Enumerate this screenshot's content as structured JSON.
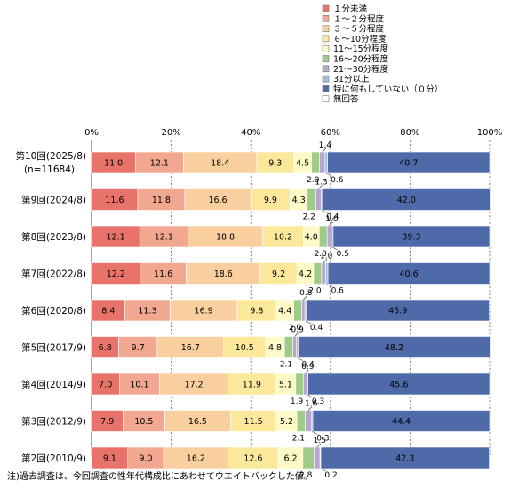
{
  "chart_data": {
    "type": "bar",
    "orientation": "horizontal",
    "stacked": true,
    "xlim": [
      0,
      100
    ],
    "x_ticks": [
      "0%",
      "20%",
      "40%",
      "60%",
      "80%",
      "100%"
    ],
    "grid": true,
    "legend_position": "top",
    "categories": [
      "第10回(2025/8)",
      "第9回(2024/8)",
      "第8回(2023/8)",
      "第7回(2022/8)",
      "第6回(2020/8)",
      "第5回(2017/9)",
      "第4回(2014/9)",
      "第3回(2012/9)",
      "第2回(2010/9)"
    ],
    "category_sublabels": [
      "(n=11684)",
      "",
      "",
      "",
      "",
      "",
      "",
      "",
      ""
    ],
    "series": [
      {
        "name": "１分未満",
        "color": "#e8736b",
        "values": [
          11.0,
          11.6,
          12.1,
          12.2,
          8.4,
          6.8,
          7.0,
          7.9,
          9.1
        ]
      },
      {
        "name": "１～２分程度",
        "color": "#f2a890",
        "values": [
          12.1,
          11.8,
          12.1,
          11.6,
          11.3,
          9.7,
          10.1,
          10.5,
          9.0
        ]
      },
      {
        "name": "３～５分程度",
        "color": "#f9cfa0",
        "values": [
          18.4,
          16.6,
          18.8,
          18.6,
          16.9,
          16.7,
          17.2,
          16.5,
          16.2
        ]
      },
      {
        "name": "６～10分程度",
        "color": "#fbe89b",
        "values": [
          9.3,
          9.9,
          10.2,
          9.2,
          9.8,
          10.5,
          11.9,
          11.5,
          12.6
        ]
      },
      {
        "name": "11～15分程度",
        "color": "#fdfac8",
        "values": [
          4.5,
          4.3,
          4.0,
          4.2,
          4.4,
          4.8,
          5.1,
          5.2,
          6.2
        ]
      },
      {
        "name": "16～20分程度",
        "color": "#9fcb8a",
        "values": [
          2.0,
          2.2,
          2.0,
          2.0,
          2.0,
          2.1,
          1.9,
          2.1,
          2.8
        ]
      },
      {
        "name": "21～30分程度",
        "color": "#b9a6cf",
        "values": [
          1.4,
          1.3,
          1.0,
          1.0,
          0.8,
          0.9,
          0.9,
          1.6,
          1.5
        ]
      },
      {
        "name": "31分以上",
        "color": "#a4b9df",
        "values": [
          0.6,
          0.4,
          0.5,
          0.6,
          0.4,
          0.4,
          0.3,
          0.3,
          0.2
        ]
      },
      {
        "name": "特に何もしていない（０分）",
        "color": "#4f6aa8",
        "values": [
          40.7,
          42.0,
          39.3,
          40.6,
          45.9,
          48.2,
          45.6,
          44.4,
          42.3
        ]
      },
      {
        "name": "無回答",
        "color": "#ffffff",
        "values": [
          0,
          0,
          0,
          0,
          0,
          0,
          0,
          0,
          0
        ]
      }
    ],
    "small_labels": {
      "above": [
        "1.4",
        "1.3",
        "1.0",
        "1.0",
        "0.8",
        "0.9",
        "0.9",
        "1.6",
        "1.5"
      ],
      "below_left": [
        "2.0",
        "2.2",
        "2.0",
        "2.0",
        "2.0",
        "2.1",
        "1.9",
        "2.1",
        "2.8"
      ],
      "below_right": [
        "0.6",
        "0.4",
        "0.5",
        "0.6",
        "0.4",
        "0.4",
        "0.3",
        "0.3",
        "0.2"
      ]
    }
  },
  "note": "注)過去調査は、今回調査の性年代構成比にあわせてウエイトバックした値。"
}
